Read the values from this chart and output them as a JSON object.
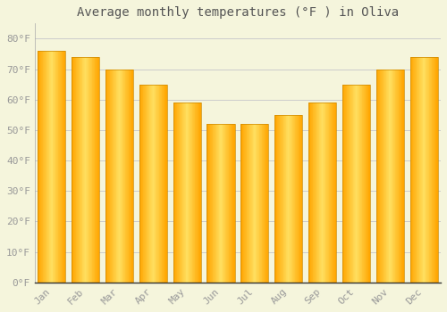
{
  "title": "Average monthly temperatures (°F ) in Oliva",
  "months": [
    "Jan",
    "Feb",
    "Mar",
    "Apr",
    "May",
    "Jun",
    "Jul",
    "Aug",
    "Sep",
    "Oct",
    "Nov",
    "Dec"
  ],
  "values": [
    76,
    74,
    70,
    65,
    59,
    52,
    52,
    55,
    59,
    65,
    70,
    74
  ],
  "bar_color_center": "#FFD966",
  "bar_color_edge": "#FFA500",
  "background_color": "#F5F5DC",
  "plot_bg_color": "#F5F5DC",
  "grid_color": "#CCCCCC",
  "ytick_labels": [
    "0°F",
    "10°F",
    "20°F",
    "30°F",
    "40°F",
    "50°F",
    "60°F",
    "70°F",
    "80°F"
  ],
  "ytick_values": [
    0,
    10,
    20,
    30,
    40,
    50,
    60,
    70,
    80
  ],
  "ylim": [
    0,
    85
  ],
  "title_fontsize": 10,
  "tick_fontsize": 8,
  "tick_color": "#999999",
  "title_color": "#555555",
  "bar_width": 0.82
}
